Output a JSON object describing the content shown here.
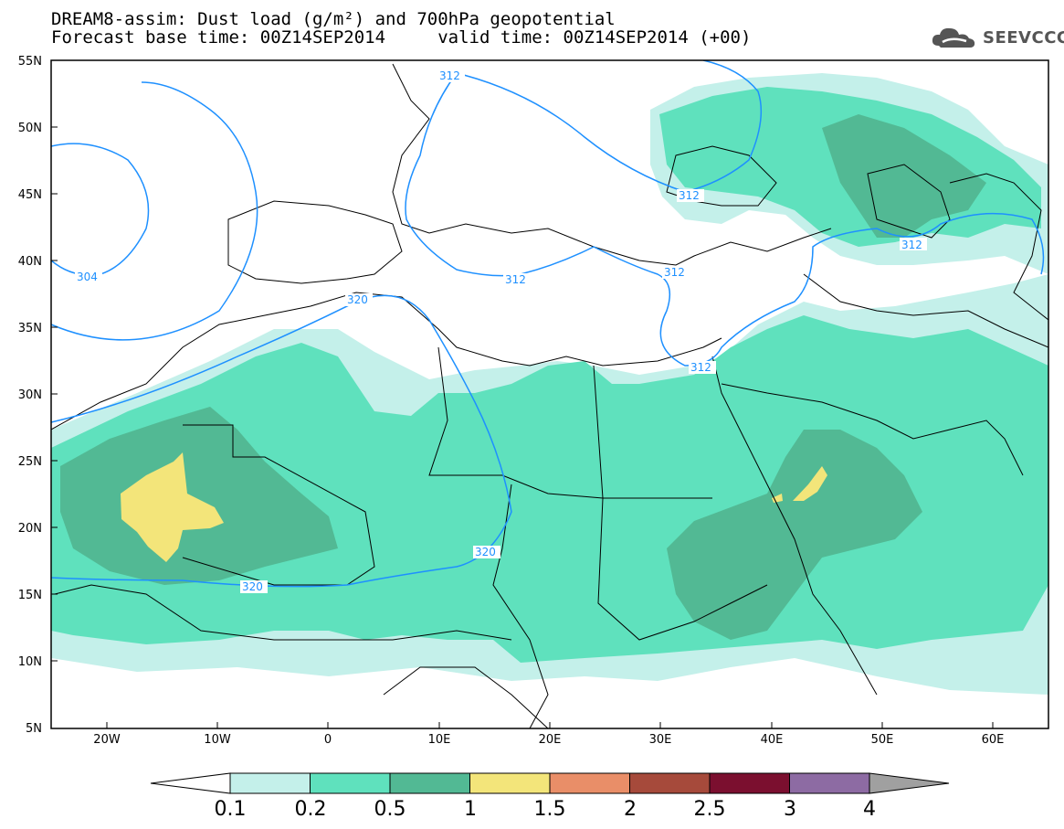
{
  "title": {
    "line1": "DREAM8-assim: Dust load (g/m²) and 700hPa geopotential",
    "line2": "Forecast base time: 00Z14SEP2014     valid time: 00Z14SEP2014 (+00)"
  },
  "logo": {
    "text": "SEEVCCC",
    "icon": "cloud-icon"
  },
  "map": {
    "lon_range": [
      -25,
      65
    ],
    "lat_range": [
      5,
      55
    ],
    "x_ticks": [
      "20W",
      "10W",
      "0",
      "10E",
      "20E",
      "30E",
      "40E",
      "50E",
      "60E"
    ],
    "y_ticks": [
      "55N",
      "50N",
      "45N",
      "40N",
      "35N",
      "30N",
      "25N",
      "20N",
      "15N",
      "10N",
      "5N"
    ],
    "contour_labels": [
      "312",
      "312",
      "312",
      "312",
      "312",
      "312",
      "304",
      "320",
      "320",
      "320"
    ],
    "contour_color": "#1e90ff"
  },
  "colorbar": {
    "labels": [
      "0.1",
      "0.2",
      "0.5",
      "1",
      "1.5",
      "2",
      "2.5",
      "3",
      "4"
    ],
    "colors": [
      "#c4f0ea",
      "#5fe1bd",
      "#52b994",
      "#f3e57a",
      "#e98e68",
      "#a64a3b",
      "#7b0f2f",
      "#8d6ba3",
      "#a0a0a0"
    ]
  }
}
